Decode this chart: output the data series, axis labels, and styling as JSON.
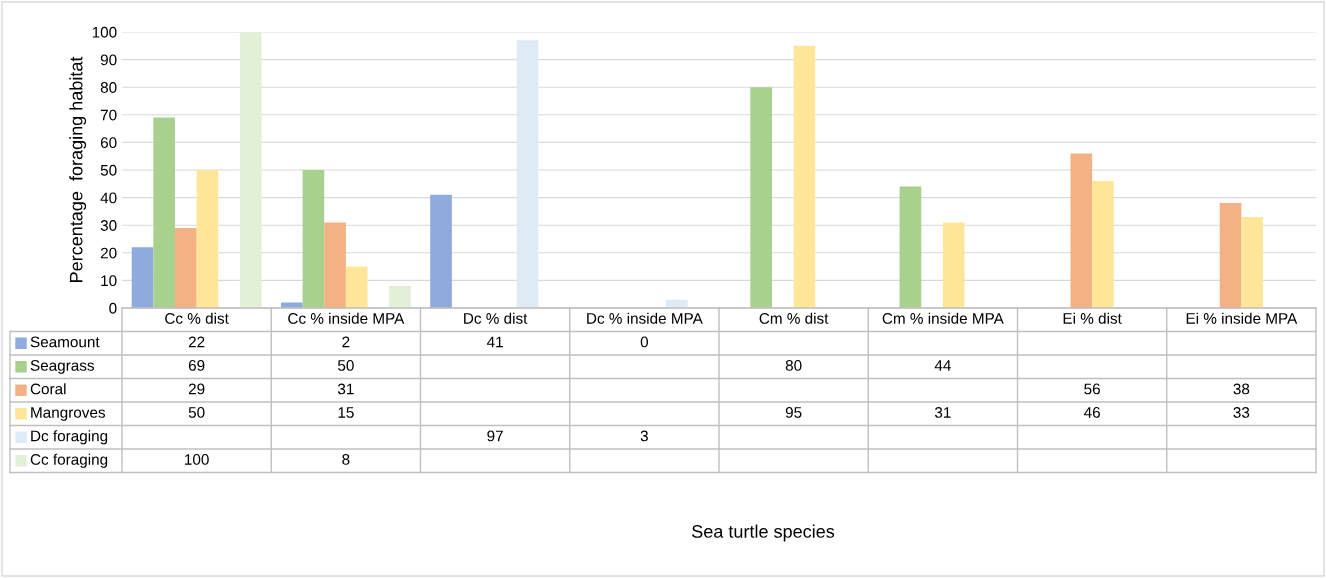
{
  "chart_data": {
    "type": "bar",
    "ylabel": "Percentage  foraging habitat",
    "annotations": [
      "Sea turtle species"
    ],
    "categories": [
      "Cc % dist",
      "Cc % inside MPA",
      "Dc % dist",
      "Dc % inside MPA",
      "Cm % dist",
      "Cm % inside MPA",
      "Ei % dist",
      "Ei % inside MPA"
    ],
    "series": [
      {
        "name": "Seamount",
        "color": "#8faadc",
        "values": [
          22,
          2,
          41,
          0,
          null,
          null,
          null,
          null
        ]
      },
      {
        "name": "Seagrass",
        "color": "#a9d18e",
        "values": [
          69,
          50,
          null,
          null,
          80,
          44,
          null,
          null
        ]
      },
      {
        "name": "Coral",
        "color": "#f4b183",
        "values": [
          29,
          31,
          null,
          null,
          null,
          null,
          56,
          38
        ]
      },
      {
        "name": "Mangroves",
        "color": "#ffe699",
        "values": [
          50,
          15,
          null,
          null,
          95,
          31,
          46,
          33
        ]
      },
      {
        "name": "Dc foraging",
        "color": "#deebf7",
        "values": [
          null,
          null,
          97,
          3,
          null,
          null,
          null,
          null
        ]
      },
      {
        "name": "Cc foraging",
        "color": "#e2f0d9",
        "values": [
          100,
          8,
          null,
          null,
          null,
          null,
          null,
          null
        ]
      }
    ],
    "ylim": [
      0,
      100
    ],
    "yticks": [
      0,
      10,
      20,
      30,
      40,
      50,
      60,
      70,
      80,
      90,
      100
    ],
    "grid": "y",
    "data_labels": true,
    "legend": "bottom left"
  }
}
